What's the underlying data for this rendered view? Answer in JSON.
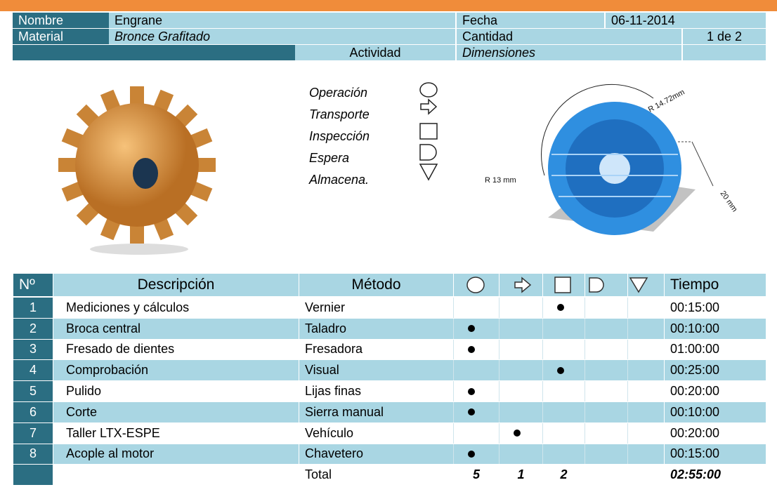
{
  "header": {
    "name_label": "Nombre",
    "name": "Engrane",
    "date_label": "Fecha",
    "date": "06-11-2014",
    "material_label": "Material",
    "material": "Bronce Grafitado",
    "quantity_label": "Cantidad",
    "quantity": "1 de 2",
    "activity_label": "Actividad",
    "dimensions_label": "Dimensiones"
  },
  "activities": [
    "Operación",
    "Transporte",
    "Inspección",
    "Espera",
    "Almacena."
  ],
  "dimensions": {
    "labels": [
      "R 14.72mm",
      "R 13 mm",
      "20 mm"
    ]
  },
  "table": {
    "columns": [
      "Nº",
      "Descripción",
      "Método",
      "Tiempo"
    ],
    "rows": [
      {
        "num": "1",
        "description": "Mediciones y cálculos",
        "method": "Vernier",
        "marks": [
          0,
          0,
          1,
          0,
          0
        ],
        "time": "00:15:00"
      },
      {
        "num": "2",
        "description": "Broca central",
        "method": "Taladro",
        "marks": [
          1,
          0,
          0,
          0,
          0
        ],
        "time": "00:10:00"
      },
      {
        "num": "3",
        "description": "Fresado de dientes",
        "method": "Fresadora",
        "marks": [
          1,
          0,
          0,
          0,
          0
        ],
        "time": "01:00:00"
      },
      {
        "num": "4",
        "description": "Comprobación",
        "method": "Visual",
        "marks": [
          0,
          0,
          1,
          0,
          0
        ],
        "time": "00:25:00"
      },
      {
        "num": "5",
        "description": "Pulido",
        "method": "Lijas finas",
        "marks": [
          1,
          0,
          0,
          0,
          0
        ],
        "time": "00:20:00"
      },
      {
        "num": "6",
        "description": "Corte",
        "method": "Sierra manual",
        "marks": [
          1,
          0,
          0,
          0,
          0
        ],
        "time": "00:10:00"
      },
      {
        "num": "7",
        "description": "Taller LTX-ESPE",
        "method": "Vehículo",
        "marks": [
          0,
          1,
          0,
          0,
          0
        ],
        "time": "00:20:00"
      },
      {
        "num": "8",
        "description": "Acople al motor",
        "method": "Chavetero",
        "marks": [
          1,
          0,
          0,
          0,
          0
        ],
        "time": "00:15:00"
      }
    ],
    "total": {
      "label": "Total",
      "counts": [
        5,
        1,
        2
      ],
      "time": "02:55:00"
    }
  }
}
